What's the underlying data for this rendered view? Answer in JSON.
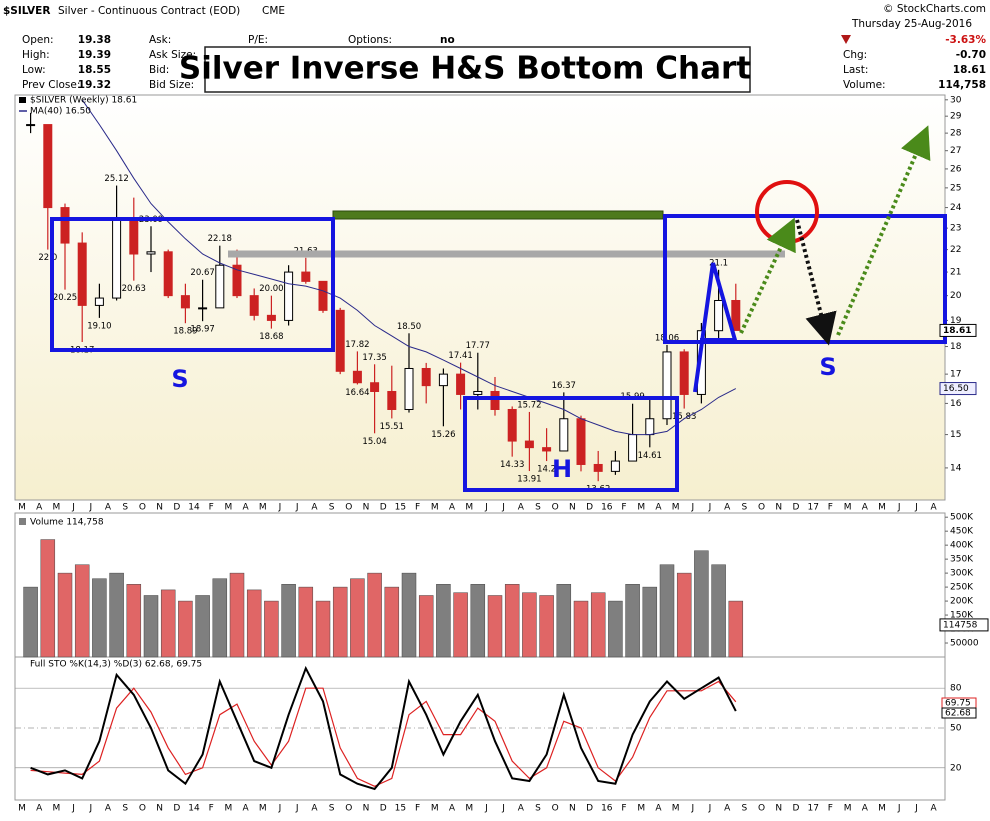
{
  "header": {
    "symbol": "$SILVER",
    "name": "Silver - Continuous Contract (EOD)",
    "exchange": "CME",
    "copyright": "© StockCharts.com",
    "date": "Thursday 25-Aug-2016",
    "quote": [
      {
        "label": "Open:",
        "value": "19.38"
      },
      {
        "label": "High:",
        "value": "19.39"
      },
      {
        "label": "Low:",
        "value": "18.55"
      },
      {
        "label": "Prev Close:",
        "value": "19.32"
      }
    ],
    "book": [
      "Ask:",
      "Ask Size:",
      "Bid:",
      "Bid Size:"
    ],
    "pe": "P/E:",
    "options": {
      "label": "Options:",
      "value": "no"
    },
    "change_pct": "-3.63%",
    "stats": [
      {
        "label": "Chg:",
        "value": "-0.70"
      },
      {
        "label": "Last:",
        "value": "18.61"
      },
      {
        "label": "Volume:",
        "value": "114,758"
      }
    ]
  },
  "chart_data": [
    {
      "type": "candlestick",
      "title": "Silver Inverse H&S Bottom Chart",
      "annotations": [
        "S",
        "H",
        "S"
      ],
      "log_scale": true,
      "grid": false,
      "categories": [
        "M",
        "A",
        "M",
        "J",
        "J",
        "A",
        "S",
        "O",
        "N",
        "D",
        "14",
        "F",
        "M",
        "A",
        "M",
        "J",
        "J",
        "A",
        "S",
        "O",
        "N",
        "D",
        "15",
        "F",
        "M",
        "A",
        "M",
        "J",
        "J",
        "A",
        "S",
        "O",
        "N",
        "D",
        "16",
        "F",
        "M",
        "A",
        "M",
        "J",
        "J",
        "A",
        "S",
        "O",
        "N",
        "D",
        "17",
        "F",
        "M",
        "A",
        "M",
        "J",
        "J",
        "A"
      ],
      "ylim": [
        13.1,
        30.3
      ],
      "yticks": [
        14,
        15,
        16,
        17,
        18,
        19,
        20,
        21,
        22,
        23,
        24,
        25,
        26,
        27,
        28,
        29,
        30
      ],
      "up_color": "#000000",
      "down_color": "#cc2222",
      "series": [
        {
          "name": "$SILVER (Weekly) 18.61",
          "high": [
            29.2,
            28.5,
            24.2,
            22.8,
            20.5,
            25.12,
            24.5,
            23.09,
            22.0,
            20.5,
            20.67,
            22.18,
            22.0,
            20.3,
            20.0,
            21.3,
            21.63,
            20.6,
            19.5,
            17.82,
            17.35,
            17.3,
            18.5,
            17.4,
            17.2,
            17.41,
            17.77,
            16.9,
            15.9,
            15.72,
            15.2,
            16.37,
            15.6,
            14.5,
            14.5,
            15.99,
            16.2,
            18.06,
            17.9,
            18.9,
            21.1,
            20.5,
            null,
            null,
            null,
            null,
            null,
            null,
            null,
            null,
            null,
            null,
            null,
            null
          ],
          "low": [
            28.0,
            22.0,
            20.25,
            18.17,
            19.1,
            19.8,
            20.63,
            21.0,
            19.9,
            18.89,
            18.97,
            19.8,
            19.9,
            19.0,
            18.68,
            18.8,
            20.5,
            19.3,
            17.0,
            16.64,
            15.04,
            15.51,
            15.7,
            16.0,
            15.26,
            15.8,
            15.8,
            15.6,
            14.33,
            13.91,
            14.2,
            14.5,
            13.9,
            13.62,
            13.8,
            14.7,
            14.61,
            15.3,
            15.83,
            16.0,
            18.3,
            18.61,
            null,
            null,
            null,
            null,
            null,
            null,
            null,
            null,
            null,
            null,
            null,
            null
          ],
          "close": [
            28.5,
            24.0,
            22.3,
            19.6,
            19.9,
            23.5,
            21.8,
            21.9,
            20.0,
            19.5,
            19.5,
            21.3,
            20.0,
            19.2,
            19.0,
            21.0,
            20.6,
            19.4,
            17.1,
            16.7,
            16.4,
            15.8,
            17.2,
            16.6,
            17.0,
            16.3,
            16.4,
            15.8,
            14.8,
            14.6,
            14.5,
            15.5,
            14.1,
            13.9,
            14.2,
            15.0,
            15.5,
            17.8,
            16.3,
            18.6,
            19.8,
            18.61,
            null,
            null,
            null,
            null,
            null,
            null,
            null,
            null,
            null,
            null,
            null,
            null
          ],
          "high_labels": [
            null,
            null,
            null,
            null,
            null,
            "25.12",
            null,
            "23.09",
            null,
            null,
            "20.67",
            "22.18",
            null,
            null,
            "20.00",
            null,
            "21.63",
            null,
            null,
            "17.82",
            "17.35",
            null,
            "18.50",
            null,
            null,
            "17.41",
            "17.77",
            null,
            null,
            "15.72",
            null,
            "16.37",
            null,
            null,
            null,
            "15.99",
            null,
            "18.06",
            null,
            null,
            "21.1",
            null,
            null,
            null,
            null,
            null,
            null,
            null,
            null,
            null,
            null,
            null,
            null,
            null
          ],
          "low_labels": [
            null,
            "22.0",
            "20.25",
            "18.17",
            "19.10",
            null,
            "20.63",
            null,
            null,
            "18.89",
            "18.97",
            null,
            null,
            null,
            "18.68",
            null,
            null,
            null,
            null,
            "16.64",
            "15.04",
            "15.51",
            null,
            null,
            "15.26",
            null,
            null,
            null,
            "14.33",
            "13.91",
            "14.2",
            null,
            null,
            "13.62",
            null,
            null,
            "14.61",
            null,
            "15.83",
            null,
            null,
            null,
            null,
            null,
            null,
            null,
            null,
            null,
            null,
            null,
            null,
            null,
            null,
            null
          ]
        },
        {
          "name": "MA(40) 16.50",
          "color": "#2a2a8a",
          "last_label": "16.50",
          "values": [
            null,
            null,
            null,
            30.0,
            28.5,
            27.0,
            25.5,
            24.2,
            23.3,
            22.5,
            21.8,
            21.4,
            21.1,
            20.9,
            20.7,
            20.5,
            20.4,
            20.2,
            19.9,
            19.4,
            18.8,
            18.4,
            18.0,
            17.8,
            17.5,
            17.2,
            16.9,
            16.6,
            16.4,
            16.2,
            16.0,
            15.8,
            15.5,
            15.3,
            15.1,
            15.0,
            15.0,
            15.1,
            15.5,
            15.8,
            16.2,
            16.5,
            null,
            null,
            null,
            null,
            null,
            null,
            null,
            null,
            null,
            null,
            null,
            null
          ]
        }
      ]
    },
    {
      "type": "bar",
      "title": "Volume 114,758",
      "last_volume": 114758,
      "up_color": "#7f7f7f",
      "down_color": "#e06666",
      "ylim": [
        0,
        515000
      ],
      "yticks": [
        50000,
        {
          "value": 100000,
          "label": "100K"
        },
        {
          "value": 150000,
          "label": "150K"
        },
        {
          "value": 200000,
          "label": "200K"
        },
        {
          "value": 250000,
          "label": "250K"
        },
        {
          "value": 300000,
          "label": "300K"
        },
        {
          "value": 350000,
          "label": "350K"
        },
        {
          "value": 400000,
          "label": "400K"
        },
        {
          "value": 450000,
          "label": "450K"
        },
        {
          "value": 500000,
          "label": "500K"
        }
      ],
      "values": [
        250000,
        420000,
        300000,
        330000,
        280000,
        300000,
        260000,
        220000,
        240000,
        200000,
        220000,
        280000,
        300000,
        240000,
        200000,
        260000,
        250000,
        200000,
        250000,
        280000,
        300000,
        250000,
        300000,
        220000,
        260000,
        230000,
        260000,
        220000,
        260000,
        230000,
        220000,
        260000,
        200000,
        230000,
        200000,
        260000,
        250000,
        330000,
        300000,
        380000,
        330000,
        200000,
        null,
        null,
        null,
        null,
        null,
        null,
        null,
        null,
        null,
        null,
        null,
        null
      ]
    },
    {
      "type": "line",
      "title": "Full STO %K(14,3) %D(3) 62.68, 69.75",
      "categories": [
        "M",
        "A",
        "M",
        "J",
        "J",
        "A",
        "S",
        "O",
        "N",
        "D",
        "14",
        "F",
        "M",
        "A",
        "M",
        "J",
        "J",
        "A",
        "S",
        "O",
        "N",
        "D",
        "15",
        "F",
        "M",
        "A",
        "M",
        "J",
        "J",
        "A",
        "S",
        "O",
        "N",
        "D",
        "16",
        "F",
        "M",
        "A",
        "M",
        "J",
        "J",
        "A",
        "S",
        "O",
        "N",
        "D",
        "17",
        "F",
        "M",
        "A",
        "M",
        "J",
        "J",
        "A"
      ],
      "ylim": [
        -4.3,
        103.5
      ],
      "yticks": [
        20,
        50,
        80
      ],
      "grid": true,
      "series": [
        {
          "name": "%K",
          "color": "#000000",
          "values": [
            20,
            15,
            18,
            12,
            40,
            90,
            75,
            50,
            18,
            8,
            30,
            85,
            55,
            25,
            20,
            60,
            95,
            70,
            15,
            8,
            4,
            20,
            85,
            60,
            30,
            55,
            75,
            40,
            12,
            10,
            30,
            75,
            35,
            10,
            8,
            45,
            70,
            85,
            72,
            80,
            88,
            62.68,
            null,
            null,
            null,
            null,
            null,
            null,
            null,
            null,
            null,
            null,
            null,
            null
          ]
        },
        {
          "name": "%D",
          "color": "#dd2222",
          "values": [
            18,
            17,
            16,
            15,
            25,
            65,
            80,
            62,
            35,
            15,
            20,
            60,
            68,
            40,
            22,
            40,
            80,
            80,
            35,
            12,
            6,
            12,
            60,
            70,
            45,
            45,
            65,
            55,
            25,
            12,
            20,
            55,
            50,
            20,
            10,
            28,
            58,
            78,
            78,
            78,
            85,
            69.75,
            null,
            null,
            null,
            null,
            null,
            null,
            null,
            null,
            null,
            null,
            null,
            null
          ]
        }
      ]
    }
  ]
}
